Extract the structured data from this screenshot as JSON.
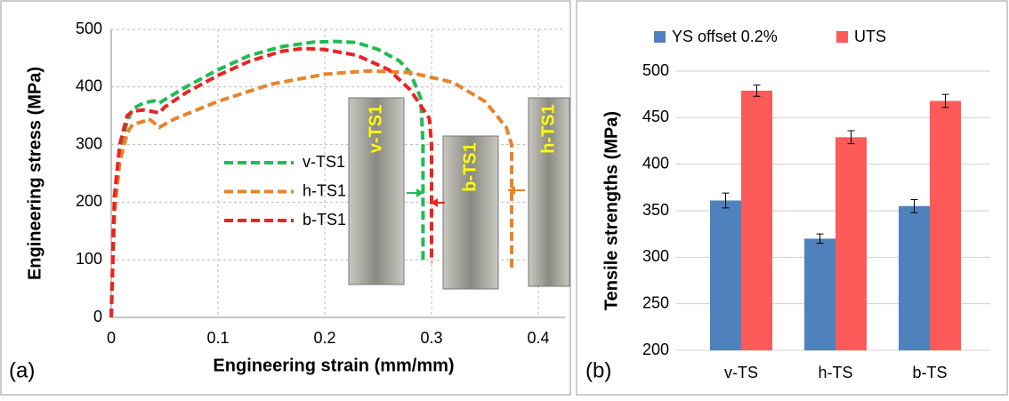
{
  "chart_data": [
    {
      "type": "line",
      "panel_label": "(a)",
      "xlabel": "Engineering strain (mm/mm)",
      "ylabel": "Engineering stress (MPa)",
      "xlim": [
        0,
        0.425
      ],
      "ylim": [
        0,
        500
      ],
      "xticks": [
        0,
        0.1,
        0.2,
        0.3,
        0.4
      ],
      "yticks": [
        0,
        100,
        200,
        300,
        400,
        500
      ],
      "grid": true,
      "legend": "center",
      "series": [
        {
          "name": "v-TS1",
          "color": "#22bb55",
          "x": [
            0,
            0.003,
            0.008,
            0.015,
            0.02,
            0.03,
            0.04,
            0.045,
            0.05,
            0.07,
            0.1,
            0.13,
            0.16,
            0.19,
            0.21,
            0.23,
            0.25,
            0.27,
            0.28,
            0.29,
            0.292,
            0.292,
            0.292
          ],
          "values": [
            0,
            200,
            290,
            340,
            362,
            372,
            376,
            372,
            378,
            400,
            430,
            455,
            470,
            478,
            479,
            477,
            465,
            445,
            425,
            380,
            300,
            200,
            92
          ]
        },
        {
          "name": "h-TS1",
          "color": "#e8832a",
          "x": [
            0,
            0.003,
            0.008,
            0.015,
            0.02,
            0.03,
            0.035,
            0.04,
            0.045,
            0.05,
            0.06,
            0.1,
            0.15,
            0.2,
            0.24,
            0.28,
            0.32,
            0.35,
            0.37,
            0.375,
            0.375,
            0.375
          ],
          "values": [
            0,
            180,
            270,
            320,
            335,
            340,
            345,
            338,
            330,
            335,
            345,
            375,
            405,
            422,
            428,
            425,
            408,
            375,
            330,
            300,
            200,
            80
          ]
        },
        {
          "name": "b-TS1",
          "color": "#ee2222",
          "x": [
            0,
            0.003,
            0.008,
            0.015,
            0.02,
            0.03,
            0.04,
            0.045,
            0.05,
            0.07,
            0.1,
            0.13,
            0.16,
            0.18,
            0.2,
            0.23,
            0.26,
            0.28,
            0.298,
            0.3,
            0.3,
            0.3
          ],
          "values": [
            0,
            210,
            300,
            350,
            358,
            360,
            357,
            355,
            365,
            390,
            420,
            445,
            462,
            467,
            465,
            455,
            430,
            395,
            345,
            300,
            200,
            95
          ]
        }
      ],
      "annotations": [
        "v-TS1",
        "b-TS1",
        "h-TS1"
      ]
    },
    {
      "type": "bar",
      "panel_label": "(b)",
      "ylabel": "Tensile strengths (MPa)",
      "categories": [
        "v-TS",
        "h-TS",
        "b-TS"
      ],
      "ylim": [
        200,
        500
      ],
      "yticks": [
        200,
        250,
        300,
        350,
        400,
        450,
        500
      ],
      "grid": true,
      "legend": "top",
      "series": [
        {
          "name": "YS offset 0.2%",
          "color": "#4f81bd",
          "values": [
            361,
            320,
            355
          ],
          "errors": [
            8,
            5,
            7
          ]
        },
        {
          "name": "UTS",
          "color": "#ff5a5a",
          "values": [
            479,
            429,
            468
          ],
          "errors": [
            6,
            7,
            7
          ]
        }
      ]
    }
  ]
}
